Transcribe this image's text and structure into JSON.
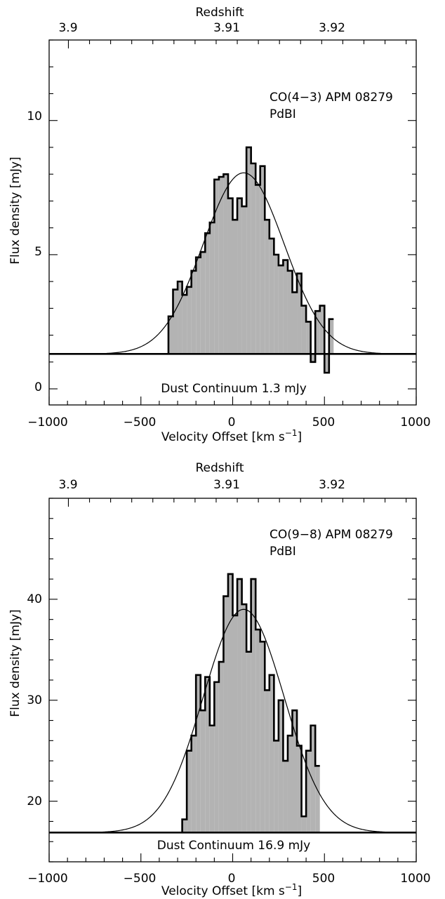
{
  "colors": {
    "fill": "#b3b3b3",
    "line": "#000000",
    "background": "#ffffff"
  },
  "chart_data": [
    {
      "type": "area",
      "subtype": "histogram-with-gaussian-fit",
      "annotation": [
        "CO(4−3) APM 08279",
        "PdBI"
      ],
      "continuum_label": "Dust Continuum 1.3 mJy",
      "continuum": 1.3,
      "xlabel": "Velocity Offset [km s",
      "xlabel_sup": "−1",
      "xlabel_end": "]",
      "ylabel": "Flux density [mJy]",
      "top_label": "Redshift",
      "xlim": [
        -1000,
        1000
      ],
      "ylim": [
        -0.6,
        13.0
      ],
      "xticks": [
        -1000,
        -500,
        0,
        500,
        1000
      ],
      "xtick_labels": [
        "−1000",
        "−500",
        "0",
        "500",
        "1000"
      ],
      "yticks": [
        0,
        5,
        10
      ],
      "ytick_labels": [
        "0",
        "5",
        "10"
      ],
      "top_ticks": [
        {
          "label": "3.9",
          "x": -895
        },
        {
          "label": "3.91",
          "x": -30
        },
        {
          "label": "3.92",
          "x": 545
        }
      ],
      "series": [
        {
          "kind": "histogram",
          "bin_width": 25,
          "x_centers": [
            -337.5,
            -312.5,
            -287.5,
            -262.5,
            -237.5,
            -212.5,
            -187.5,
            -162.5,
            -137.5,
            -112.5,
            -87.5,
            -62.5,
            -37.5,
            -12.5,
            12.5,
            37.5,
            62.5,
            87.5,
            112.5,
            137.5,
            162.5,
            187.5,
            212.5,
            237.5,
            262.5,
            287.5,
            312.5,
            337.5,
            362.5,
            387.5,
            412.5,
            437.5,
            462.5,
            487.5,
            512.5,
            537.5
          ],
          "values": [
            2.7,
            3.7,
            4.0,
            3.5,
            3.8,
            4.4,
            4.9,
            5.1,
            5.8,
            6.2,
            7.8,
            7.9,
            8.0,
            7.1,
            6.3,
            7.1,
            6.8,
            9.0,
            8.4,
            7.6,
            8.3,
            6.3,
            5.6,
            5.0,
            4.6,
            4.8,
            4.4,
            3.6,
            4.3,
            3.1,
            2.5,
            1.0,
            2.9,
            3.1,
            0.6,
            2.6
          ]
        },
        {
          "kind": "gaussian",
          "center": 60,
          "fwhm": 520,
          "peak": 8.05,
          "baseline": 1.3
        }
      ]
    },
    {
      "type": "area",
      "subtype": "histogram-with-gaussian-fit",
      "annotation": [
        "CO(9−8) APM 08279",
        "PdBI"
      ],
      "continuum_label": "Dust Continuum 16.9 mJy",
      "continuum": 16.9,
      "xlabel": "Velocity Offset [km s",
      "xlabel_sup": "−1",
      "xlabel_end": "]",
      "ylabel": "Flux density [mJy]",
      "top_label": "Redshift",
      "xlim": [
        -1000,
        1000
      ],
      "ylim": [
        14.0,
        50.0
      ],
      "xticks": [
        -1000,
        -500,
        0,
        500,
        1000
      ],
      "xtick_labels": [
        "−1000",
        "−500",
        "0",
        "500",
        "1000"
      ],
      "yticks": [
        20,
        30,
        40
      ],
      "ytick_labels": [
        "20",
        "30",
        "40"
      ],
      "top_ticks": [
        {
          "label": "3.9",
          "x": -895
        },
        {
          "label": "3.91",
          "x": -30
        },
        {
          "label": "3.92",
          "x": 545
        }
      ],
      "series": [
        {
          "kind": "histogram",
          "bin_width": 25,
          "x_centers": [
            -262.5,
            -237.5,
            -212.5,
            -187.5,
            -162.5,
            -137.5,
            -112.5,
            -87.5,
            -62.5,
            -37.5,
            -12.5,
            12.5,
            37.5,
            62.5,
            87.5,
            112.5,
            137.5,
            162.5,
            187.5,
            212.5,
            237.5,
            262.5,
            287.5,
            312.5,
            337.5,
            362.5,
            387.5,
            412.5,
            437.5,
            462.5
          ],
          "values": [
            18.2,
            25.0,
            26.5,
            32.5,
            29.0,
            32.3,
            27.5,
            31.8,
            33.8,
            40.3,
            42.5,
            38.4,
            42.0,
            39.5,
            34.8,
            42.0,
            37.0,
            35.8,
            31.0,
            32.5,
            26.0,
            30.0,
            24.0,
            26.5,
            29.0,
            25.5,
            18.5,
            25.0,
            27.5,
            23.5
          ]
        },
        {
          "kind": "gaussian",
          "center": 60,
          "fwhm": 520,
          "peak": 39.0,
          "baseline": 16.9
        }
      ]
    }
  ]
}
